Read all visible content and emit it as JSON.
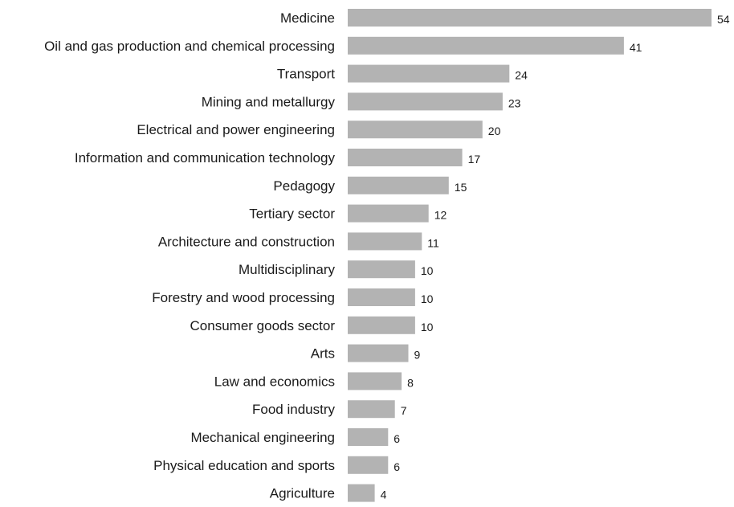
{
  "chart_data": {
    "type": "bar",
    "orientation": "horizontal",
    "categories": [
      "Medicine",
      "Oil and gas production and chemical processing",
      "Transport",
      "Mining and metallurgy",
      "Electrical and power engineering",
      "Information and communication technology",
      "Pedagogy",
      "Tertiary sector",
      "Architecture and construction",
      "Multidisciplinary",
      "Forestry and wood processing",
      "Consumer goods sector",
      "Arts",
      "Law and economics",
      "Food industry",
      "Mechanical engineering",
      "Physical education and sports",
      "Agriculture"
    ],
    "values": [
      54,
      41,
      24,
      23,
      20,
      17,
      15,
      12,
      11,
      10,
      10,
      10,
      9,
      8,
      7,
      6,
      6,
      4
    ],
    "title": "",
    "xlabel": "",
    "ylabel": "",
    "xlim": [
      0,
      54
    ],
    "grid": false,
    "legend": "none",
    "bar_color": "#b3b3b3",
    "data_labels": true
  }
}
